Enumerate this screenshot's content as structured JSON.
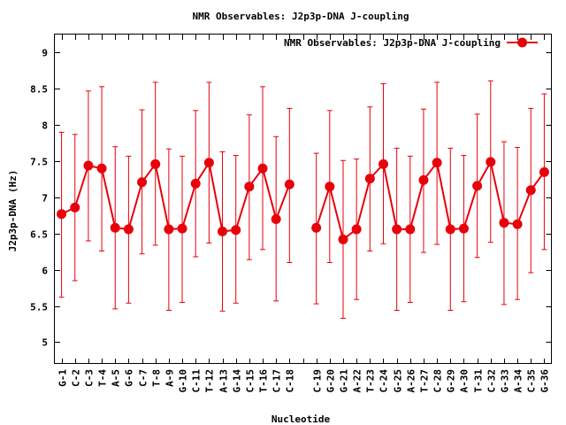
{
  "chart_data": {
    "type": "line",
    "title": "NMR Observables: J2p3p-DNA J-coupling",
    "xlabel": "Nucleotide",
    "ylabel": "J2p3p-DNA (Hz)",
    "ylim": [
      4.7,
      9.25
    ],
    "yticks": [
      5,
      5.5,
      6,
      6.5,
      7,
      7.5,
      8,
      8.5,
      9
    ],
    "grid": false,
    "legend_position": "top-right",
    "color": "#e8000b",
    "categories": [
      "G-1",
      "C-2",
      "C-3",
      "T-4",
      "A-5",
      "G-6",
      "C-7",
      "T-8",
      "A-9",
      "G-10",
      "C-11",
      "T-12",
      "A-13",
      "G-14",
      "C-15",
      "T-16",
      "C-17",
      "C-18",
      "",
      "C-19",
      "G-20",
      "G-21",
      "A-22",
      "T-23",
      "C-24",
      "G-25",
      "A-26",
      "T-27",
      "C-28",
      "G-29",
      "A-30",
      "T-31",
      "C-32",
      "G-33",
      "A-34",
      "C-35",
      "G-36"
    ],
    "series": [
      {
        "name": "NMR Observables: J2p3p-DNA J-coupling",
        "values": [
          6.77,
          6.86,
          7.44,
          7.4,
          6.58,
          6.56,
          7.21,
          7.46,
          6.56,
          6.57,
          7.19,
          7.48,
          6.53,
          6.55,
          7.15,
          7.4,
          6.7,
          7.18,
          null,
          6.58,
          7.15,
          6.42,
          6.56,
          7.26,
          7.46,
          6.56,
          6.56,
          7.24,
          7.48,
          6.56,
          6.57,
          7.16,
          7.49,
          6.65,
          6.63,
          7.1,
          7.35
        ],
        "err_low": [
          5.62,
          5.85,
          6.4,
          6.26,
          5.46,
          5.54,
          6.22,
          6.34,
          5.44,
          5.55,
          6.18,
          6.37,
          5.43,
          5.54,
          6.14,
          6.28,
          5.57,
          6.1,
          null,
          5.53,
          6.1,
          5.33,
          5.59,
          6.26,
          6.36,
          5.44,
          5.55,
          6.24,
          6.35,
          5.44,
          5.56,
          6.17,
          6.38,
          5.52,
          5.59,
          5.96,
          6.28
        ],
        "err_high": [
          7.9,
          7.87,
          8.47,
          8.53,
          7.7,
          7.57,
          8.21,
          8.59,
          7.67,
          7.57,
          8.2,
          8.59,
          7.63,
          7.58,
          8.14,
          8.53,
          7.84,
          8.23,
          null,
          7.61,
          8.2,
          7.51,
          7.53,
          8.25,
          8.57,
          7.68,
          7.57,
          8.22,
          8.59,
          7.68,
          7.58,
          8.15,
          8.61,
          7.77,
          7.69,
          8.23,
          8.43
        ]
      }
    ]
  }
}
